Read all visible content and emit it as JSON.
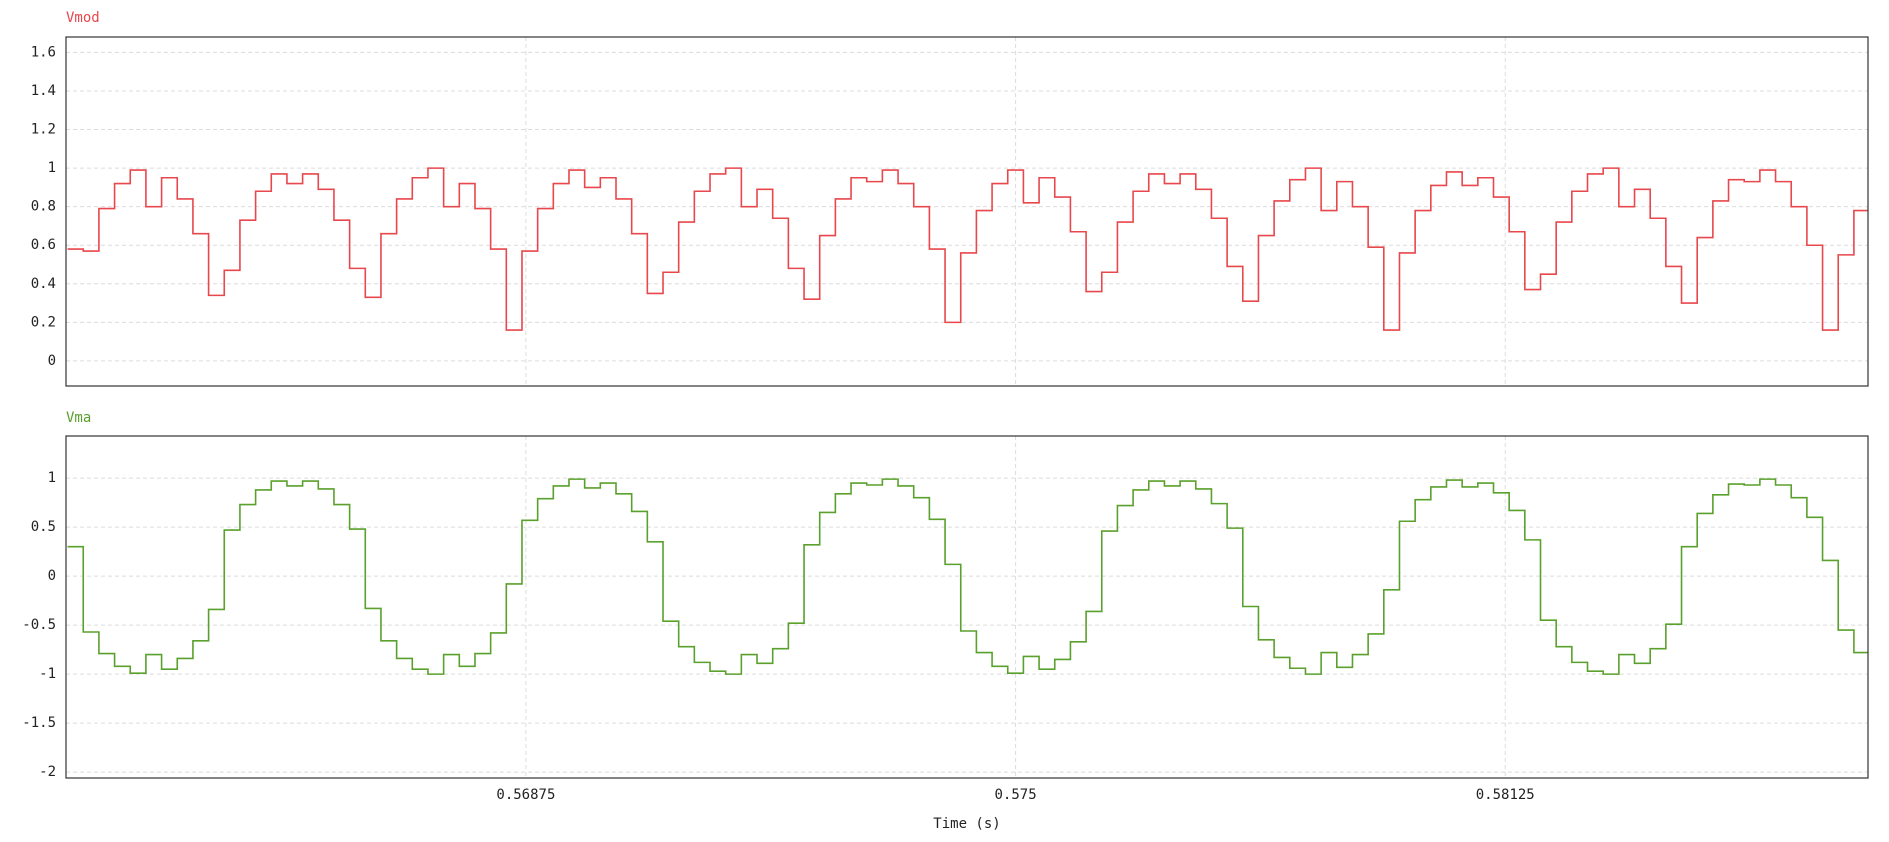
{
  "chart_data": [
    {
      "type": "line",
      "title": "Vmod",
      "color": "#e8474c",
      "step": true,
      "grid": true,
      "xlim": [
        0.56288,
        0.58588
      ],
      "xticks": [
        0.56875,
        0.575,
        0.58125
      ],
      "ylim": [
        -0.13,
        1.68
      ],
      "yticks": [
        0,
        0.2,
        0.4,
        0.6,
        0.8,
        1,
        1.2,
        1.4,
        1.6
      ],
      "x": [
        0.5629,
        0.5631,
        0.5633,
        0.5635,
        0.5637,
        0.5639,
        0.5641,
        0.5643,
        0.5645,
        0.5647,
        0.5649,
        0.5651,
        0.5653,
        0.5655,
        0.5657,
        0.5659,
        0.5661,
        0.5663,
        0.5665,
        0.5667,
        0.5669,
        0.5671,
        0.5673,
        0.5675,
        0.5677,
        0.5679,
        0.5681,
        0.5683,
        0.5685,
        0.5687,
        0.5689,
        0.5691,
        0.5693,
        0.5695,
        0.5697,
        0.5699,
        0.5701,
        0.5703,
        0.5705,
        0.5707,
        0.5709,
        0.5711,
        0.5713,
        0.5715,
        0.5717,
        0.5719,
        0.5721,
        0.5723,
        0.5725,
        0.5727,
        0.5729,
        0.5731,
        0.5733,
        0.5735,
        0.5737,
        0.5739,
        0.5741,
        0.5743,
        0.5745,
        0.5747,
        0.5749,
        0.5751,
        0.5753,
        0.5755,
        0.5757,
        0.5759,
        0.5761,
        0.5763,
        0.5765,
        0.5767,
        0.5769,
        0.5771,
        0.5773,
        0.5775,
        0.5777,
        0.5779,
        0.5781,
        0.5783,
        0.5785,
        0.5787,
        0.5789,
        0.5791,
        0.5793,
        0.5795,
        0.5797,
        0.5799,
        0.5801,
        0.5803,
        0.5805,
        0.5807,
        0.5809,
        0.5811,
        0.5813,
        0.5815,
        0.5817,
        0.5819,
        0.5821,
        0.5823,
        0.5825,
        0.5827,
        0.5829,
        0.5831,
        0.5833,
        0.5835,
        0.5837,
        0.5839,
        0.5841,
        0.5843,
        0.5845,
        0.5847,
        0.5849,
        0.5851,
        0.5853,
        0.5855,
        0.5857
      ],
      "values": [
        0.58,
        0.57,
        0.79,
        0.92,
        0.99,
        0.8,
        0.95,
        0.84,
        0.66,
        0.34,
        0.47,
        0.73,
        0.88,
        0.97,
        0.92,
        0.97,
        0.89,
        0.73,
        0.48,
        0.33,
        0.66,
        0.84,
        0.95,
        1,
        0.8,
        0.92,
        0.79,
        0.58,
        0.16,
        0.57,
        0.79,
        0.92,
        0.99,
        0.9,
        0.95,
        0.84,
        0.66,
        0.35,
        0.46,
        0.72,
        0.88,
        0.97,
        1,
        0.8,
        0.89,
        0.74,
        0.48,
        0.32,
        0.65,
        0.84,
        0.95,
        0.93,
        0.99,
        0.92,
        0.8,
        0.58,
        0.2,
        0.56,
        0.78,
        0.92,
        0.99,
        0.82,
        0.95,
        0.85,
        0.67,
        0.36,
        0.46,
        0.72,
        0.88,
        0.97,
        0.92,
        0.97,
        0.89,
        0.74,
        0.49,
        0.31,
        0.65,
        0.83,
        0.94,
        1,
        0.78,
        0.93,
        0.8,
        0.59,
        0.16,
        0.56,
        0.78,
        0.91,
        0.98,
        0.91,
        0.95,
        0.85,
        0.67,
        0.37,
        0.45,
        0.72,
        0.88,
        0.97,
        1,
        0.8,
        0.89,
        0.74,
        0.49,
        0.3,
        0.64,
        0.83,
        0.94,
        0.93,
        0.99,
        0.93,
        0.8,
        0.6,
        0.16,
        0.55,
        0.78
      ]
    },
    {
      "type": "line",
      "title": "Vma",
      "color": "#5aa02c",
      "step": true,
      "grid": true,
      "xlabel": "Time (s)",
      "xlim": [
        0.56288,
        0.58588
      ],
      "xticks": [
        0.56875,
        0.575,
        0.58125
      ],
      "ylim": [
        -2.06,
        1.43
      ],
      "yticks": [
        -2,
        -1.5,
        -1,
        -0.5,
        0,
        0.5,
        1
      ],
      "x": [
        0.5629,
        0.5631,
        0.5633,
        0.5635,
        0.5637,
        0.5639,
        0.5641,
        0.5643,
        0.5645,
        0.5647,
        0.5649,
        0.5651,
        0.5653,
        0.5655,
        0.5657,
        0.5659,
        0.5661,
        0.5663,
        0.5665,
        0.5667,
        0.5669,
        0.5671,
        0.5673,
        0.5675,
        0.5677,
        0.5679,
        0.5681,
        0.5683,
        0.5685,
        0.5687,
        0.5689,
        0.5691,
        0.5693,
        0.5695,
        0.5697,
        0.5699,
        0.5701,
        0.5703,
        0.5705,
        0.5707,
        0.5709,
        0.5711,
        0.5713,
        0.5715,
        0.5717,
        0.5719,
        0.5721,
        0.5723,
        0.5725,
        0.5727,
        0.5729,
        0.5731,
        0.5733,
        0.5735,
        0.5737,
        0.5739,
        0.5741,
        0.5743,
        0.5745,
        0.5747,
        0.5749,
        0.5751,
        0.5753,
        0.5755,
        0.5757,
        0.5759,
        0.5761,
        0.5763,
        0.5765,
        0.5767,
        0.5769,
        0.5771,
        0.5773,
        0.5775,
        0.5777,
        0.5779,
        0.5781,
        0.5783,
        0.5785,
        0.5787,
        0.5789,
        0.5791,
        0.5793,
        0.5795,
        0.5797,
        0.5799,
        0.5801,
        0.5803,
        0.5805,
        0.5807,
        0.5809,
        0.5811,
        0.5813,
        0.5815,
        0.5817,
        0.5819,
        0.5821,
        0.5823,
        0.5825,
        0.5827,
        0.5829,
        0.5831,
        0.5833,
        0.5835,
        0.5837,
        0.5839,
        0.5841,
        0.5843,
        0.5845,
        0.5847,
        0.5849,
        0.5851,
        0.5853,
        0.5855,
        0.5857
      ],
      "values": [
        0.3,
        -0.57,
        -0.79,
        -0.92,
        -0.99,
        -0.8,
        -0.95,
        -0.84,
        -0.66,
        -0.34,
        0.47,
        0.73,
        0.88,
        0.97,
        0.92,
        0.97,
        0.89,
        0.73,
        0.48,
        -0.33,
        -0.66,
        -0.84,
        -0.95,
        -1,
        -0.8,
        -0.92,
        -0.79,
        -0.58,
        -0.08,
        0.57,
        0.79,
        0.92,
        0.99,
        0.9,
        0.95,
        0.84,
        0.66,
        0.35,
        -0.46,
        -0.72,
        -0.88,
        -0.97,
        -1,
        -0.8,
        -0.89,
        -0.74,
        -0.48,
        0.32,
        0.65,
        0.84,
        0.95,
        0.93,
        0.99,
        0.92,
        0.8,
        0.58,
        0.12,
        -0.56,
        -0.78,
        -0.92,
        -0.99,
        -0.82,
        -0.95,
        -0.85,
        -0.67,
        -0.36,
        0.46,
        0.72,
        0.88,
        0.97,
        0.92,
        0.97,
        0.89,
        0.74,
        0.49,
        -0.31,
        -0.65,
        -0.83,
        -0.94,
        -1,
        -0.78,
        -0.93,
        -0.8,
        -0.59,
        -0.14,
        0.56,
        0.78,
        0.91,
        0.98,
        0.91,
        0.95,
        0.85,
        0.67,
        0.37,
        -0.45,
        -0.72,
        -0.88,
        -0.97,
        -1,
        -0.8,
        -0.89,
        -0.74,
        -0.49,
        0.3,
        0.64,
        0.83,
        0.94,
        0.93,
        0.99,
        0.93,
        0.8,
        0.6,
        0.16,
        -0.55,
        -0.78
      ]
    }
  ]
}
